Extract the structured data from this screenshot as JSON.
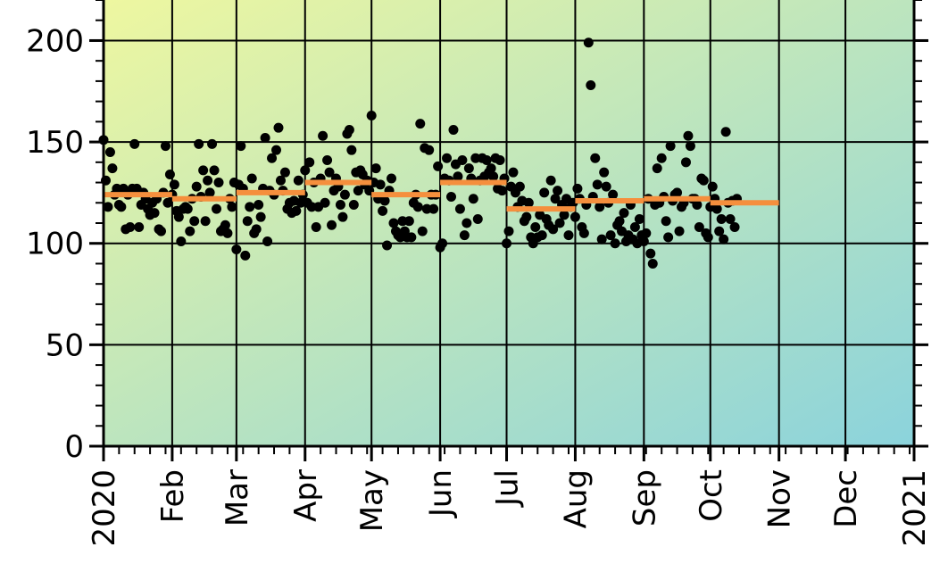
{
  "chart_data": {
    "type": "scatter",
    "title": "",
    "xlabel": "",
    "ylabel": "",
    "ylim": [
      0,
      220
    ],
    "xlim": [
      "2020-01-01",
      "2021-01-01"
    ],
    "yticks": [
      0,
      50,
      100,
      150,
      200
    ],
    "grid": true,
    "legend": "none",
    "colors": {
      "background_top_left": "#EEF7A0",
      "background_bottom_right": "#8BD3DC",
      "points": "#000000",
      "monthly_mean": "#F58F3D"
    },
    "x_ticks": [
      {
        "date": "2020-01-01",
        "label": "2020"
      },
      {
        "date": "2020-02-01",
        "label": "Feb"
      },
      {
        "date": "2020-03-01",
        "label": "Mar"
      },
      {
        "date": "2020-04-01",
        "label": "Apr"
      },
      {
        "date": "2020-05-01",
        "label": "May"
      },
      {
        "date": "2020-06-01",
        "label": "Jun"
      },
      {
        "date": "2020-07-01",
        "label": "Jul"
      },
      {
        "date": "2020-08-01",
        "label": "Aug"
      },
      {
        "date": "2020-09-01",
        "label": "Sep"
      },
      {
        "date": "2020-10-01",
        "label": "Oct"
      },
      {
        "date": "2020-11-01",
        "label": "Nov"
      },
      {
        "date": "2020-12-01",
        "label": "Dec"
      },
      {
        "date": "2021-01-01",
        "label": "2021"
      }
    ],
    "monthly_means": [
      {
        "start": "2020-01-01",
        "end": "2020-02-01",
        "value": 124
      },
      {
        "start": "2020-02-01",
        "end": "2020-03-01",
        "value": 122
      },
      {
        "start": "2020-03-01",
        "end": "2020-04-01",
        "value": 125
      },
      {
        "start": "2020-04-01",
        "end": "2020-05-01",
        "value": 130
      },
      {
        "start": "2020-05-01",
        "end": "2020-06-01",
        "value": 124
      },
      {
        "start": "2020-06-01",
        "end": "2020-07-01",
        "value": 130
      },
      {
        "start": "2020-07-01",
        "end": "2020-08-01",
        "value": 117
      },
      {
        "start": "2020-08-01",
        "end": "2020-09-01",
        "value": 121
      },
      {
        "start": "2020-09-01",
        "end": "2020-10-01",
        "value": 122
      },
      {
        "start": "2020-10-01",
        "end": "2020-11-01",
        "value": 120
      }
    ],
    "points": [
      {
        "x": "2020-01-01",
        "y": 151
      },
      {
        "x": "2020-01-02",
        "y": 131
      },
      {
        "x": "2020-01-03",
        "y": 118
      },
      {
        "x": "2020-01-04",
        "y": 145
      },
      {
        "x": "2020-01-05",
        "y": 137
      },
      {
        "x": "2020-01-06",
        "y": 124
      },
      {
        "x": "2020-01-07",
        "y": 127
      },
      {
        "x": "2020-01-08",
        "y": 119
      },
      {
        "x": "2020-01-09",
        "y": 118
      },
      {
        "x": "2020-01-10",
        "y": 127
      },
      {
        "x": "2020-01-11",
        "y": 107
      },
      {
        "x": "2020-01-12",
        "y": 124
      },
      {
        "x": "2020-01-13",
        "y": 108
      },
      {
        "x": "2020-01-14",
        "y": 127
      },
      {
        "x": "2020-01-15",
        "y": 149
      },
      {
        "x": "2020-01-16",
        "y": 127
      },
      {
        "x": "2020-01-17",
        "y": 108
      },
      {
        "x": "2020-01-18",
        "y": 119
      },
      {
        "x": "2020-01-19",
        "y": 125
      },
      {
        "x": "2020-01-20",
        "y": 122
      },
      {
        "x": "2020-01-21",
        "y": 117
      },
      {
        "x": "2020-01-22",
        "y": 114
      },
      {
        "x": "2020-01-23",
        "y": 120
      },
      {
        "x": "2020-01-24",
        "y": 115
      },
      {
        "x": "2020-01-25",
        "y": 122
      },
      {
        "x": "2020-01-26",
        "y": 107
      },
      {
        "x": "2020-01-27",
        "y": 106
      },
      {
        "x": "2020-01-28",
        "y": 125
      },
      {
        "x": "2020-01-29",
        "y": 148
      },
      {
        "x": "2020-01-30",
        "y": 120
      },
      {
        "x": "2020-01-31",
        "y": 134
      },
      {
        "x": "2020-02-01",
        "y": 124
      },
      {
        "x": "2020-02-02",
        "y": 129
      },
      {
        "x": "2020-02-03",
        "y": 116
      },
      {
        "x": "2020-02-04",
        "y": 113
      },
      {
        "x": "2020-02-05",
        "y": 101
      },
      {
        "x": "2020-02-06",
        "y": 117
      },
      {
        "x": "2020-02-07",
        "y": 118
      },
      {
        "x": "2020-02-08",
        "y": 117
      },
      {
        "x": "2020-02-09",
        "y": 106
      },
      {
        "x": "2020-02-10",
        "y": 122
      },
      {
        "x": "2020-02-11",
        "y": 111
      },
      {
        "x": "2020-02-12",
        "y": 128
      },
      {
        "x": "2020-02-13",
        "y": 149
      },
      {
        "x": "2020-02-14",
        "y": 123
      },
      {
        "x": "2020-02-15",
        "y": 136
      },
      {
        "x": "2020-02-16",
        "y": 111
      },
      {
        "x": "2020-02-17",
        "y": 131
      },
      {
        "x": "2020-02-18",
        "y": 125
      },
      {
        "x": "2020-02-19",
        "y": 149
      },
      {
        "x": "2020-02-20",
        "y": 136
      },
      {
        "x": "2020-02-21",
        "y": 117
      },
      {
        "x": "2020-02-22",
        "y": 130
      },
      {
        "x": "2020-02-23",
        "y": 106
      },
      {
        "x": "2020-02-24",
        "y": 107
      },
      {
        "x": "2020-02-25",
        "y": 109
      },
      {
        "x": "2020-02-26",
        "y": 105
      },
      {
        "x": "2020-02-27",
        "y": 122
      },
      {
        "x": "2020-02-28",
        "y": 118
      },
      {
        "x": "2020-02-29",
        "y": 130
      },
      {
        "x": "2020-03-01",
        "y": 97
      },
      {
        "x": "2020-03-02",
        "y": 129
      },
      {
        "x": "2020-03-03",
        "y": 148
      },
      {
        "x": "2020-03-04",
        "y": 127
      },
      {
        "x": "2020-03-05",
        "y": 94
      },
      {
        "x": "2020-03-06",
        "y": 111
      },
      {
        "x": "2020-03-07",
        "y": 118
      },
      {
        "x": "2020-03-08",
        "y": 132
      },
      {
        "x": "2020-03-09",
        "y": 105
      },
      {
        "x": "2020-03-10",
        "y": 107
      },
      {
        "x": "2020-03-11",
        "y": 119
      },
      {
        "x": "2020-03-12",
        "y": 113
      },
      {
        "x": "2020-03-13",
        "y": 127
      },
      {
        "x": "2020-03-14",
        "y": 152
      },
      {
        "x": "2020-03-15",
        "y": 101
      },
      {
        "x": "2020-03-16",
        "y": 126
      },
      {
        "x": "2020-03-17",
        "y": 142
      },
      {
        "x": "2020-03-18",
        "y": 124
      },
      {
        "x": "2020-03-19",
        "y": 146
      },
      {
        "x": "2020-03-20",
        "y": 157
      },
      {
        "x": "2020-03-21",
        "y": 131
      },
      {
        "x": "2020-03-22",
        "y": 126
      },
      {
        "x": "2020-03-23",
        "y": 135
      },
      {
        "x": "2020-03-24",
        "y": 117
      },
      {
        "x": "2020-03-25",
        "y": 120
      },
      {
        "x": "2020-03-26",
        "y": 115
      },
      {
        "x": "2020-03-27",
        "y": 121
      },
      {
        "x": "2020-03-28",
        "y": 116
      },
      {
        "x": "2020-03-29",
        "y": 131
      },
      {
        "x": "2020-03-30",
        "y": 120
      },
      {
        "x": "2020-03-31",
        "y": 124
      },
      {
        "x": "2020-04-01",
        "y": 136
      },
      {
        "x": "2020-04-02",
        "y": 120
      },
      {
        "x": "2020-04-03",
        "y": 140
      },
      {
        "x": "2020-04-04",
        "y": 118
      },
      {
        "x": "2020-04-05",
        "y": 130
      },
      {
        "x": "2020-04-06",
        "y": 108
      },
      {
        "x": "2020-04-07",
        "y": 118
      },
      {
        "x": "2020-04-08",
        "y": 132
      },
      {
        "x": "2020-04-09",
        "y": 153
      },
      {
        "x": "2020-04-10",
        "y": 120
      },
      {
        "x": "2020-04-11",
        "y": 141
      },
      {
        "x": "2020-04-12",
        "y": 135
      },
      {
        "x": "2020-04-13",
        "y": 109
      },
      {
        "x": "2020-04-14",
        "y": 126
      },
      {
        "x": "2020-04-15",
        "y": 132
      },
      {
        "x": "2020-04-16",
        "y": 128
      },
      {
        "x": "2020-04-17",
        "y": 119
      },
      {
        "x": "2020-04-18",
        "y": 113
      },
      {
        "x": "2020-04-19",
        "y": 124
      },
      {
        "x": "2020-04-20",
        "y": 154
      },
      {
        "x": "2020-04-21",
        "y": 156
      },
      {
        "x": "2020-04-22",
        "y": 146
      },
      {
        "x": "2020-04-23",
        "y": 119
      },
      {
        "x": "2020-04-24",
        "y": 135
      },
      {
        "x": "2020-04-25",
        "y": 126
      },
      {
        "x": "2020-04-26",
        "y": 136
      },
      {
        "x": "2020-04-27",
        "y": 134
      },
      {
        "x": "2020-04-28",
        "y": 129
      },
      {
        "x": "2020-04-29",
        "y": 131
      },
      {
        "x": "2020-04-30",
        "y": 126
      },
      {
        "x": "2020-05-01",
        "y": 163
      },
      {
        "x": "2020-05-02",
        "y": 130
      },
      {
        "x": "2020-05-03",
        "y": 137
      },
      {
        "x": "2020-05-04",
        "y": 122
      },
      {
        "x": "2020-05-05",
        "y": 129
      },
      {
        "x": "2020-05-06",
        "y": 116
      },
      {
        "x": "2020-05-07",
        "y": 121
      },
      {
        "x": "2020-05-08",
        "y": 99
      },
      {
        "x": "2020-05-09",
        "y": 126
      },
      {
        "x": "2020-05-10",
        "y": 132
      },
      {
        "x": "2020-05-11",
        "y": 110
      },
      {
        "x": "2020-05-12",
        "y": 106
      },
      {
        "x": "2020-05-13",
        "y": 104
      },
      {
        "x": "2020-05-14",
        "y": 103
      },
      {
        "x": "2020-05-15",
        "y": 111
      },
      {
        "x": "2020-05-16",
        "y": 106
      },
      {
        "x": "2020-05-17",
        "y": 103
      },
      {
        "x": "2020-05-18",
        "y": 111
      },
      {
        "x": "2020-05-19",
        "y": 103
      },
      {
        "x": "2020-05-20",
        "y": 120
      },
      {
        "x": "2020-05-21",
        "y": 124
      },
      {
        "x": "2020-05-22",
        "y": 118
      },
      {
        "x": "2020-05-23",
        "y": 159
      },
      {
        "x": "2020-05-24",
        "y": 106
      },
      {
        "x": "2020-05-25",
        "y": 147
      },
      {
        "x": "2020-05-26",
        "y": 117
      },
      {
        "x": "2020-05-27",
        "y": 146
      },
      {
        "x": "2020-05-28",
        "y": 124
      },
      {
        "x": "2020-05-29",
        "y": 117
      },
      {
        "x": "2020-05-30",
        "y": 124
      },
      {
        "x": "2020-05-31",
        "y": 138
      },
      {
        "x": "2020-06-01",
        "y": 98
      },
      {
        "x": "2020-06-02",
        "y": 100
      },
      {
        "x": "2020-06-03",
        "y": 132
      },
      {
        "x": "2020-06-04",
        "y": 142
      },
      {
        "x": "2020-06-05",
        "y": 131
      },
      {
        "x": "2020-06-06",
        "y": 123
      },
      {
        "x": "2020-06-07",
        "y": 156
      },
      {
        "x": "2020-06-08",
        "y": 139
      },
      {
        "x": "2020-06-09",
        "y": 133
      },
      {
        "x": "2020-06-10",
        "y": 117
      },
      {
        "x": "2020-06-11",
        "y": 141
      },
      {
        "x": "2020-06-12",
        "y": 104
      },
      {
        "x": "2020-06-13",
        "y": 110
      },
      {
        "x": "2020-06-14",
        "y": 137
      },
      {
        "x": "2020-06-15",
        "y": 132
      },
      {
        "x": "2020-06-16",
        "y": 122
      },
      {
        "x": "2020-06-17",
        "y": 142
      },
      {
        "x": "2020-06-18",
        "y": 112
      },
      {
        "x": "2020-06-19",
        "y": 131
      },
      {
        "x": "2020-06-20",
        "y": 142
      },
      {
        "x": "2020-06-21",
        "y": 133
      },
      {
        "x": "2020-06-22",
        "y": 141
      },
      {
        "x": "2020-06-23",
        "y": 135
      },
      {
        "x": "2020-06-24",
        "y": 137
      },
      {
        "x": "2020-06-25",
        "y": 133
      },
      {
        "x": "2020-06-26",
        "y": 142
      },
      {
        "x": "2020-06-27",
        "y": 127
      },
      {
        "x": "2020-06-28",
        "y": 141
      },
      {
        "x": "2020-06-29",
        "y": 126
      },
      {
        "x": "2020-06-30",
        "y": 132
      },
      {
        "x": "2020-07-01",
        "y": 100
      },
      {
        "x": "2020-07-02",
        "y": 106
      },
      {
        "x": "2020-07-03",
        "y": 128
      },
      {
        "x": "2020-07-04",
        "y": 135
      },
      {
        "x": "2020-07-05",
        "y": 125
      },
      {
        "x": "2020-07-06",
        "y": 118
      },
      {
        "x": "2020-07-07",
        "y": 128
      },
      {
        "x": "2020-07-08",
        "y": 121
      },
      {
        "x": "2020-07-09",
        "y": 111
      },
      {
        "x": "2020-07-10",
        "y": 113
      },
      {
        "x": "2020-07-11",
        "y": 120
      },
      {
        "x": "2020-07-12",
        "y": 103
      },
      {
        "x": "2020-07-13",
        "y": 100
      },
      {
        "x": "2020-07-14",
        "y": 108
      },
      {
        "x": "2020-07-15",
        "y": 103
      },
      {
        "x": "2020-07-16",
        "y": 114
      },
      {
        "x": "2020-07-17",
        "y": 104
      },
      {
        "x": "2020-07-18",
        "y": 125
      },
      {
        "x": "2020-07-19",
        "y": 112
      },
      {
        "x": "2020-07-20",
        "y": 109
      },
      {
        "x": "2020-07-21",
        "y": 131
      },
      {
        "x": "2020-07-22",
        "y": 107
      },
      {
        "x": "2020-07-23",
        "y": 122
      },
      {
        "x": "2020-07-24",
        "y": 126
      },
      {
        "x": "2020-07-25",
        "y": 110
      },
      {
        "x": "2020-07-26",
        "y": 119
      },
      {
        "x": "2020-07-27",
        "y": 114
      },
      {
        "x": "2020-07-28",
        "y": 122
      },
      {
        "x": "2020-07-29",
        "y": 104
      },
      {
        "x": "2020-07-30",
        "y": 118
      },
      {
        "x": "2020-07-31",
        "y": 120
      },
      {
        "x": "2020-08-01",
        "y": 113
      },
      {
        "x": "2020-08-02",
        "y": 127
      },
      {
        "x": "2020-08-03",
        "y": 122
      },
      {
        "x": "2020-08-04",
        "y": 108
      },
      {
        "x": "2020-08-05",
        "y": 105
      },
      {
        "x": "2020-08-06",
        "y": 119
      },
      {
        "x": "2020-08-07",
        "y": 199
      },
      {
        "x": "2020-08-08",
        "y": 178
      },
      {
        "x": "2020-08-09",
        "y": 123
      },
      {
        "x": "2020-08-10",
        "y": 142
      },
      {
        "x": "2020-08-11",
        "y": 129
      },
      {
        "x": "2020-08-12",
        "y": 118
      },
      {
        "x": "2020-08-13",
        "y": 102
      },
      {
        "x": "2020-08-14",
        "y": 135
      },
      {
        "x": "2020-08-15",
        "y": 128
      },
      {
        "x": "2020-08-16",
        "y": 120
      },
      {
        "x": "2020-08-17",
        "y": 104
      },
      {
        "x": "2020-08-18",
        "y": 124
      },
      {
        "x": "2020-08-19",
        "y": 100
      },
      {
        "x": "2020-08-20",
        "y": 109
      },
      {
        "x": "2020-08-21",
        "y": 111
      },
      {
        "x": "2020-08-22",
        "y": 106
      },
      {
        "x": "2020-08-23",
        "y": 115
      },
      {
        "x": "2020-08-24",
        "y": 101
      },
      {
        "x": "2020-08-25",
        "y": 104
      },
      {
        "x": "2020-08-26",
        "y": 119
      },
      {
        "x": "2020-08-27",
        "y": 102
      },
      {
        "x": "2020-08-28",
        "y": 108
      },
      {
        "x": "2020-08-29",
        "y": 100
      },
      {
        "x": "2020-08-30",
        "y": 112
      },
      {
        "x": "2020-08-31",
        "y": 104
      },
      {
        "x": "2020-09-01",
        "y": 101
      },
      {
        "x": "2020-09-02",
        "y": 105
      },
      {
        "x": "2020-09-03",
        "y": 122
      },
      {
        "x": "2020-09-04",
        "y": 95
      },
      {
        "x": "2020-09-05",
        "y": 90
      },
      {
        "x": "2020-09-06",
        "y": 119
      },
      {
        "x": "2020-09-07",
        "y": 137
      },
      {
        "x": "2020-09-08",
        "y": 120
      },
      {
        "x": "2020-09-09",
        "y": 142
      },
      {
        "x": "2020-09-10",
        "y": 123
      },
      {
        "x": "2020-09-11",
        "y": 111
      },
      {
        "x": "2020-09-12",
        "y": 103
      },
      {
        "x": "2020-09-13",
        "y": 148
      },
      {
        "x": "2020-09-14",
        "y": 121
      },
      {
        "x": "2020-09-15",
        "y": 124
      },
      {
        "x": "2020-09-16",
        "y": 125
      },
      {
        "x": "2020-09-17",
        "y": 106
      },
      {
        "x": "2020-09-18",
        "y": 118
      },
      {
        "x": "2020-09-19",
        "y": 120
      },
      {
        "x": "2020-09-20",
        "y": 140
      },
      {
        "x": "2020-09-21",
        "y": 153
      },
      {
        "x": "2020-09-22",
        "y": 148
      },
      {
        "x": "2020-09-23",
        "y": 122
      },
      {
        "x": "2020-09-24",
        "y": 122
      },
      {
        "x": "2020-09-25",
        "y": 119
      },
      {
        "x": "2020-09-26",
        "y": 108
      },
      {
        "x": "2020-09-27",
        "y": 132
      },
      {
        "x": "2020-09-28",
        "y": 131
      },
      {
        "x": "2020-09-29",
        "y": 105
      },
      {
        "x": "2020-09-30",
        "y": 103
      },
      {
        "x": "2020-10-01",
        "y": 118
      },
      {
        "x": "2020-10-02",
        "y": 128
      },
      {
        "x": "2020-10-03",
        "y": 122
      },
      {
        "x": "2020-10-04",
        "y": 117
      },
      {
        "x": "2020-10-05",
        "y": 106
      },
      {
        "x": "2020-10-06",
        "y": 112
      },
      {
        "x": "2020-10-07",
        "y": 102
      },
      {
        "x": "2020-10-08",
        "y": 155
      },
      {
        "x": "2020-10-09",
        "y": 120
      },
      {
        "x": "2020-10-10",
        "y": 112
      },
      {
        "x": "2020-10-11",
        "y": 121
      },
      {
        "x": "2020-10-12",
        "y": 108
      },
      {
        "x": "2020-10-13",
        "y": 122
      }
    ]
  }
}
